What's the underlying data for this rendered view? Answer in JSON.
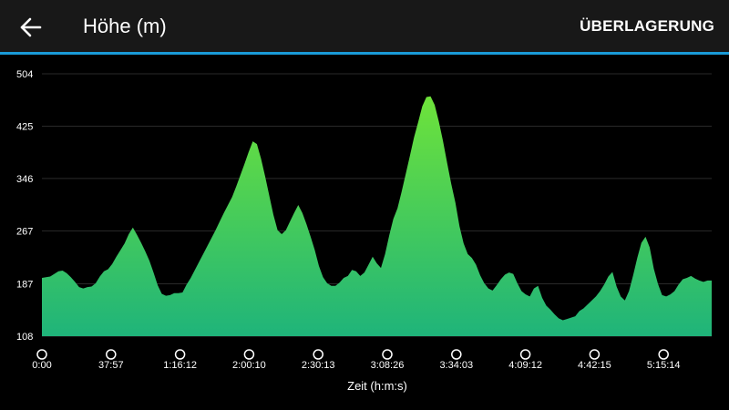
{
  "appbar": {
    "title": "Höhe (m)",
    "back_icon": "arrow-left-icon",
    "overlay_label": "ÜBERLAGERUNG",
    "accent_color": "#1a9bd8"
  },
  "chart_data": {
    "type": "area",
    "title": "",
    "xlabel": "Zeit (h:m:s)",
    "ylabel": "",
    "ylim": [
      108,
      504
    ],
    "yticks": [
      "504",
      "425",
      "346",
      "267",
      "187",
      "108"
    ],
    "xticks": [
      "0:00",
      "37:57",
      "1:16:12",
      "2:00:10",
      "2:30:13",
      "3:08:26",
      "3:34:03",
      "4:09:12",
      "4:42:15",
      "5:15:14"
    ],
    "fill_top_color": "#6ee33a",
    "fill_bottom_color": "#1fb47a",
    "series": [
      {
        "values": [
          196,
          197,
          198,
          202,
          206,
          207,
          203,
          197,
          190,
          182,
          180,
          182,
          183,
          188,
          198,
          206,
          209,
          217,
          228,
          238,
          248,
          262,
          272,
          261,
          249,
          236,
          222,
          204,
          185,
          172,
          169,
          170,
          173,
          173,
          174,
          186,
          196,
          208,
          220,
          232,
          244,
          256,
          268,
          281,
          294,
          306,
          318,
          334,
          351,
          368,
          386,
          402,
          398,
          376,
          349,
          320,
          291,
          268,
          262,
          268,
          281,
          294,
          306,
          294,
          277,
          258,
          238,
          214,
          197,
          188,
          184,
          184,
          189,
          196,
          199,
          208,
          206,
          199,
          204,
          216,
          228,
          218,
          211,
          232,
          260,
          285,
          301,
          326,
          353,
          380,
          408,
          431,
          455,
          469,
          470,
          457,
          432,
          403,
          370,
          338,
          310,
          274,
          248,
          232,
          226,
          216,
          200,
          188,
          180,
          177,
          185,
          194,
          201,
          204,
          202,
          188,
          176,
          171,
          168,
          180,
          184,
          166,
          154,
          148,
          141,
          135,
          132,
          134,
          136,
          138,
          146,
          150,
          156,
          162,
          168,
          176,
          186,
          198,
          205,
          183,
          168,
          162,
          176,
          200,
          226,
          249,
          258,
          242,
          210,
          187,
          170,
          168,
          171,
          176,
          186,
          194,
          196,
          199,
          195,
          192,
          190,
          192,
          192
        ]
      }
    ]
  }
}
